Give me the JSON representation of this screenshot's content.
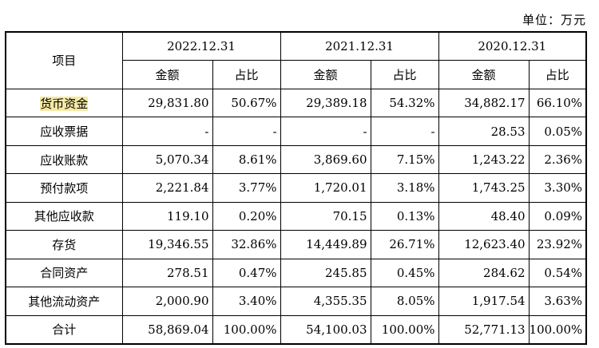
{
  "unit_label": "单位：万元",
  "header": {
    "item_col": "项目",
    "years": [
      "2022.12.31",
      "2021.12.31",
      "2020.12.31"
    ],
    "amount_label": "金额",
    "ratio_label": "占比"
  },
  "rows": [
    {
      "item": "货币资金",
      "highlighted": true,
      "cells": [
        "29,831.80",
        "50.67%",
        "29,389.18",
        "54.32%",
        "34,882.17",
        "66.10%"
      ]
    },
    {
      "item": "应收票据",
      "cells": [
        "-",
        "-",
        "-",
        "-",
        "28.53",
        "0.05%"
      ]
    },
    {
      "item": "应收账款",
      "cells": [
        "5,070.34",
        "8.61%",
        "3,869.60",
        "7.15%",
        "1,243.22",
        "2.36%"
      ]
    },
    {
      "item": "预付款项",
      "cells": [
        "2,221.84",
        "3.77%",
        "1,720.01",
        "3.18%",
        "1,743.25",
        "3.30%"
      ]
    },
    {
      "item": "其他应收款",
      "cells": [
        "119.10",
        "0.20%",
        "70.15",
        "0.13%",
        "48.40",
        "0.09%"
      ]
    },
    {
      "item": "存货",
      "cells": [
        "19,346.55",
        "32.86%",
        "14,449.89",
        "26.71%",
        "12,623.40",
        "23.92%"
      ]
    },
    {
      "item": "合同资产",
      "cells": [
        "278.51",
        "0.47%",
        "245.85",
        "0.45%",
        "284.62",
        "0.54%"
      ]
    },
    {
      "item": "其他流动资产",
      "cells": [
        "2,000.90",
        "3.40%",
        "4,355.35",
        "8.05%",
        "1,917.54",
        "3.63%"
      ]
    }
  ],
  "total": {
    "item": "合计",
    "cells": [
      "58,869.04",
      "100.00%",
      "54,100.03",
      "100.00%",
      "52,771.13",
      "100.00%"
    ]
  },
  "highlight_color": "#f5e9a4"
}
